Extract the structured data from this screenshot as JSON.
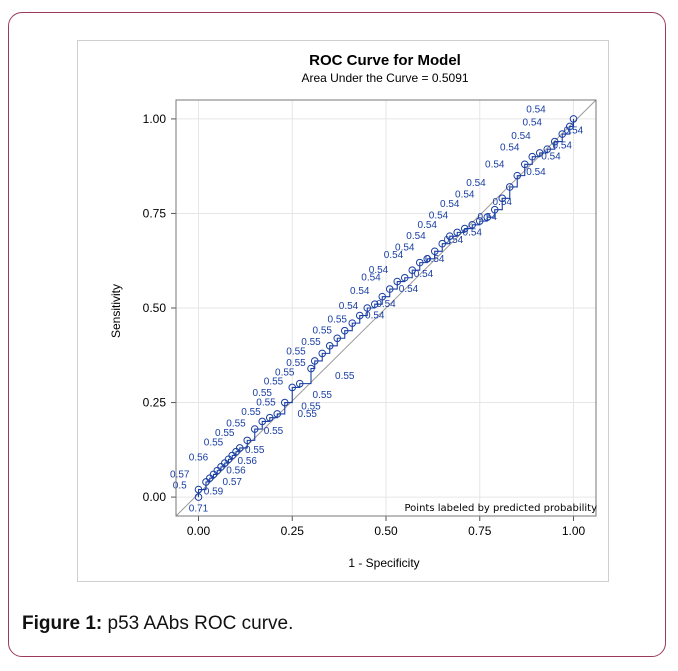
{
  "figure": {
    "caption_label": "Figure 1:",
    "caption_text": " p53 AAbs ROC curve."
  },
  "chart_data": {
    "type": "line",
    "title": "ROC Curve for Model",
    "subtitle": "Area Under the Curve = 0.5091",
    "xlabel": "1 - Specificity",
    "ylabel": "Sensitivity",
    "xlim": [
      -0.06,
      1.06
    ],
    "ylim": [
      -0.05,
      1.05
    ],
    "x_ticks": [
      "0.00",
      "0.25",
      "0.50",
      "0.75",
      "1.00"
    ],
    "y_ticks": [
      "0.00",
      "0.25",
      "0.50",
      "0.75",
      "1.00"
    ],
    "grid": true,
    "note": "Points labeled by predicted probability",
    "reference_line": [
      [
        -0.06,
        -0.05
      ],
      [
        1.06,
        1.05
      ]
    ],
    "series": [
      {
        "x": [
          0,
          0,
          0.02,
          0.03,
          0.04,
          0.05,
          0.06,
          0.07,
          0.08,
          0.09,
          0.1,
          0.11,
          0.13,
          0.15,
          0.17,
          0.19,
          0.21,
          0.23,
          0.25,
          0.27,
          0.3,
          0.31,
          0.33,
          0.35,
          0.37,
          0.39,
          0.41,
          0.43,
          0.45,
          0.47,
          0.49,
          0.51,
          0.53,
          0.55,
          0.57,
          0.59,
          0.61,
          0.63,
          0.65,
          0.67,
          0.69,
          0.71,
          0.73,
          0.75,
          0.77,
          0.79,
          0.81,
          0.83,
          0.85,
          0.87,
          0.89,
          0.91,
          0.93,
          0.95,
          0.97,
          0.99,
          1
        ],
        "y": [
          0,
          0.02,
          0.04,
          0.05,
          0.06,
          0.07,
          0.08,
          0.09,
          0.1,
          0.11,
          0.12,
          0.13,
          0.15,
          0.18,
          0.2,
          0.21,
          0.22,
          0.25,
          0.29,
          0.3,
          0.34,
          0.36,
          0.38,
          0.4,
          0.42,
          0.44,
          0.46,
          0.48,
          0.5,
          0.51,
          0.53,
          0.55,
          0.57,
          0.58,
          0.6,
          0.62,
          0.63,
          0.65,
          0.67,
          0.69,
          0.7,
          0.71,
          0.72,
          0.73,
          0.74,
          0.76,
          0.79,
          0.82,
          0.85,
          0.88,
          0.9,
          0.91,
          0.92,
          0.94,
          0.96,
          0.98,
          1
        ]
      }
    ],
    "point_labels": [
      {
        "text": "0.71",
        "x": 0.0,
        "y": -0.03
      },
      {
        "text": "0.59",
        "x": 0.04,
        "y": 0.015
      },
      {
        "text": "0.5",
        "x": -0.05,
        "y": 0.03
      },
      {
        "text": "0.57",
        "x": -0.05,
        "y": 0.06
      },
      {
        "text": "0.57",
        "x": 0.09,
        "y": 0.04
      },
      {
        "text": "0.56",
        "x": 0.1,
        "y": 0.07
      },
      {
        "text": "0.56",
        "x": 0.13,
        "y": 0.095
      },
      {
        "text": "0.56",
        "x": 0.0,
        "y": 0.105
      },
      {
        "text": "0.55",
        "x": 0.04,
        "y": 0.145
      },
      {
        "text": "0.55",
        "x": 0.07,
        "y": 0.17
      },
      {
        "text": "0.55",
        "x": 0.1,
        "y": 0.195
      },
      {
        "text": "0.55",
        "x": 0.15,
        "y": 0.125
      },
      {
        "text": "0.55",
        "x": 0.2,
        "y": 0.175
      },
      {
        "text": "0.55",
        "x": 0.14,
        "y": 0.225
      },
      {
        "text": "0.55",
        "x": 0.18,
        "y": 0.25
      },
      {
        "text": "0.55",
        "x": 0.17,
        "y": 0.275
      },
      {
        "text": "0.55",
        "x": 0.2,
        "y": 0.305
      },
      {
        "text": "0.55",
        "x": 0.29,
        "y": 0.22
      },
      {
        "text": "0.55",
        "x": 0.3,
        "y": 0.24
      },
      {
        "text": "0.55",
        "x": 0.23,
        "y": 0.33
      },
      {
        "text": "0.55",
        "x": 0.26,
        "y": 0.355
      },
      {
        "text": "0.55",
        "x": 0.33,
        "y": 0.27
      },
      {
        "text": "0.55",
        "x": 0.39,
        "y": 0.32
      },
      {
        "text": "0.55",
        "x": 0.26,
        "y": 0.385
      },
      {
        "text": "0.55",
        "x": 0.3,
        "y": 0.41
      },
      {
        "text": "0.55",
        "x": 0.33,
        "y": 0.44
      },
      {
        "text": "0.55",
        "x": 0.37,
        "y": 0.47
      },
      {
        "text": "0.54",
        "x": 0.4,
        "y": 0.505
      },
      {
        "text": "0.54",
        "x": 0.43,
        "y": 0.545
      },
      {
        "text": "0.54",
        "x": 0.46,
        "y": 0.58
      },
      {
        "text": "0.54",
        "x": 0.48,
        "y": 0.6
      },
      {
        "text": "0.54",
        "x": 0.52,
        "y": 0.64
      },
      {
        "text": "0.54",
        "x": 0.55,
        "y": 0.66
      },
      {
        "text": "0.54",
        "x": 0.58,
        "y": 0.69
      },
      {
        "text": "0.54",
        "x": 0.61,
        "y": 0.72
      },
      {
        "text": "0.54",
        "x": 0.64,
        "y": 0.745
      },
      {
        "text": "0.54",
        "x": 0.67,
        "y": 0.775
      },
      {
        "text": "0.54",
        "x": 0.71,
        "y": 0.8
      },
      {
        "text": "0.54",
        "x": 0.74,
        "y": 0.83
      },
      {
        "text": "0.54",
        "x": 0.79,
        "y": 0.88
      },
      {
        "text": "0.54",
        "x": 0.83,
        "y": 0.925
      },
      {
        "text": "0.54",
        "x": 0.86,
        "y": 0.955
      },
      {
        "text": "0.54",
        "x": 0.89,
        "y": 0.99
      },
      {
        "text": "0.54",
        "x": 0.9,
        "y": 1.025
      },
      {
        "text": "0.54",
        "x": 0.47,
        "y": 0.48
      },
      {
        "text": "0.54",
        "x": 0.5,
        "y": 0.51
      },
      {
        "text": "0.54",
        "x": 0.56,
        "y": 0.55
      },
      {
        "text": "0.54",
        "x": 0.6,
        "y": 0.59
      },
      {
        "text": "0.54",
        "x": 0.63,
        "y": 0.63
      },
      {
        "text": "0.54",
        "x": 0.68,
        "y": 0.68
      },
      {
        "text": "0.54",
        "x": 0.73,
        "y": 0.7
      },
      {
        "text": "0.54",
        "x": 0.77,
        "y": 0.74
      },
      {
        "text": "0.54",
        "x": 0.81,
        "y": 0.78
      },
      {
        "text": "0.54",
        "x": 0.9,
        "y": 0.86
      },
      {
        "text": "0.54",
        "x": 0.94,
        "y": 0.9
      },
      {
        "text": "0.54",
        "x": 0.97,
        "y": 0.93
      },
      {
        "text": "0.54",
        "x": 1.0,
        "y": 0.97
      }
    ]
  }
}
